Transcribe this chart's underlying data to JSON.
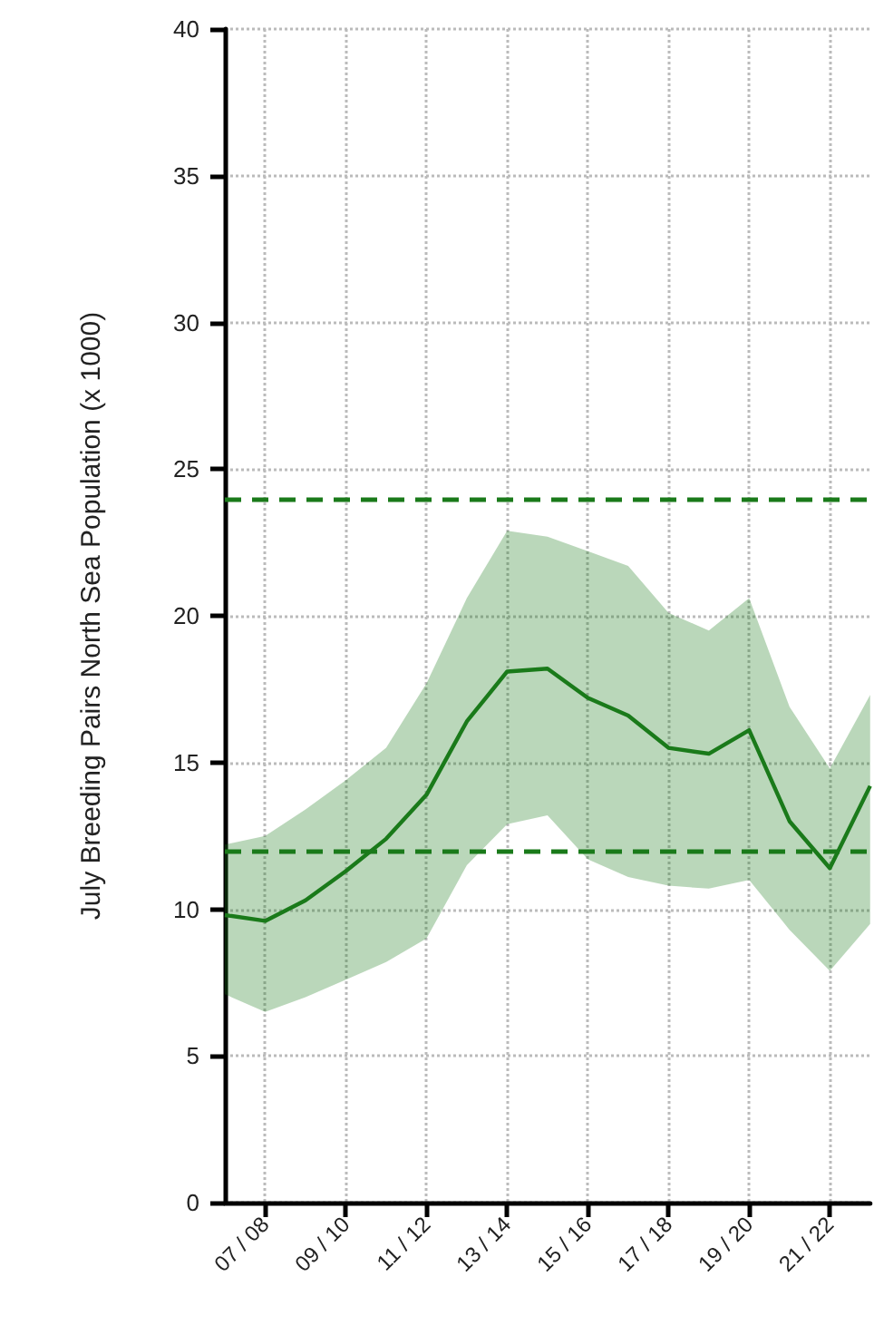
{
  "chart_data": {
    "type": "line",
    "ylabel": "July Breeding Pairs North Sea Population (x 1000)",
    "categories": [
      null,
      "07 / 08",
      null,
      "09 / 10",
      null,
      "11 / 12",
      null,
      "13 / 14",
      null,
      "15 / 16",
      null,
      "17 / 18",
      null,
      "19 / 20",
      null,
      "21 / 22",
      null
    ],
    "ylim": [
      0,
      40
    ],
    "yticks": [
      0,
      5,
      10,
      15,
      20,
      25,
      30,
      35,
      40
    ],
    "series": [
      {
        "color": "#1a7a1a",
        "values": [
          9.8,
          9.6,
          10.3,
          11.3,
          12.4,
          13.9,
          16.4,
          18.1,
          18.2,
          17.2,
          16.6,
          15.5,
          15.3,
          16.1,
          13.0,
          11.4,
          14.2
        ],
        "lower": [
          7.1,
          6.5,
          7.0,
          7.6,
          8.2,
          9.0,
          11.5,
          12.9,
          13.2,
          11.7,
          11.1,
          10.8,
          10.7,
          11.0,
          9.3,
          7.9,
          9.5
        ],
        "upper": [
          12.2,
          12.5,
          13.4,
          14.4,
          15.5,
          17.7,
          20.6,
          22.9,
          22.7,
          22.2,
          21.7,
          20.1,
          19.5,
          20.6,
          16.9,
          14.8,
          17.3
        ]
      }
    ],
    "ref_lines": [
      {
        "axis": "y",
        "value": 24,
        "color": "#1a7a1a",
        "line_style": "dashed"
      },
      {
        "axis": "y",
        "value": 12,
        "color": "#1a7a1a",
        "line_style": "dashed"
      }
    ],
    "grid": true,
    "marker": "none",
    "line_style": "solid"
  }
}
